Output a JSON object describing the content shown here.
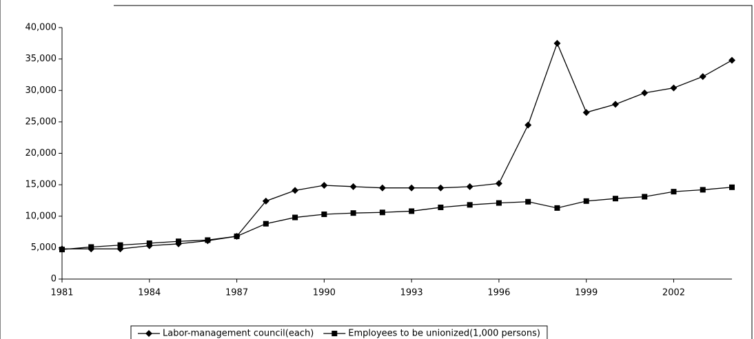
{
  "chart_data": {
    "type": "line",
    "x": [
      1981,
      1982,
      1983,
      1984,
      1985,
      1986,
      1987,
      1988,
      1989,
      1990,
      1991,
      1992,
      1993,
      1994,
      1995,
      1996,
      1997,
      1998,
      1999,
      2000,
      2001,
      2002,
      2003,
      2004
    ],
    "series": [
      {
        "name": "Labor-management council(each)",
        "color": "#000000",
        "marker": "diamond",
        "values": [
          4800,
          4800,
          4800,
          5300,
          5600,
          6100,
          6800,
          12400,
          14100,
          14900,
          14700,
          14500,
          14500,
          14500,
          14700,
          15200,
          24500,
          37500,
          26500,
          27800,
          29600,
          30400,
          32200,
          34800
        ]
      },
      {
        "name": "Employees to be unionized(1,000 persons)",
        "color": "#000000",
        "marker": "square",
        "values": [
          4700,
          5100,
          5400,
          5700,
          6000,
          6200,
          6800,
          8800,
          9800,
          10300,
          10500,
          10600,
          10800,
          11400,
          11800,
          12100,
          12300,
          11300,
          12400,
          12800,
          13100,
          13900,
          14200,
          14600
        ]
      }
    ],
    "xlim": [
      1981,
      2004
    ],
    "xticks": [
      1981,
      1984,
      1987,
      1990,
      1993,
      1996,
      1999,
      2002
    ],
    "ylim": [
      0,
      40000
    ],
    "yticks": [
      0,
      {
        "value": 5000,
        "label": "5,000"
      },
      {
        "value": 10000,
        "label": "10,000"
      },
      {
        "value": 15000,
        "label": "15,000"
      },
      {
        "value": 20000,
        "label": "20,000"
      },
      {
        "value": 25000,
        "label": "25,000"
      },
      {
        "value": 30000,
        "label": "30,000"
      },
      {
        "value": 35000,
        "label": "35,000"
      },
      {
        "value": 40000,
        "label": "40,000"
      }
    ],
    "grid": false,
    "legend": "bottom"
  }
}
